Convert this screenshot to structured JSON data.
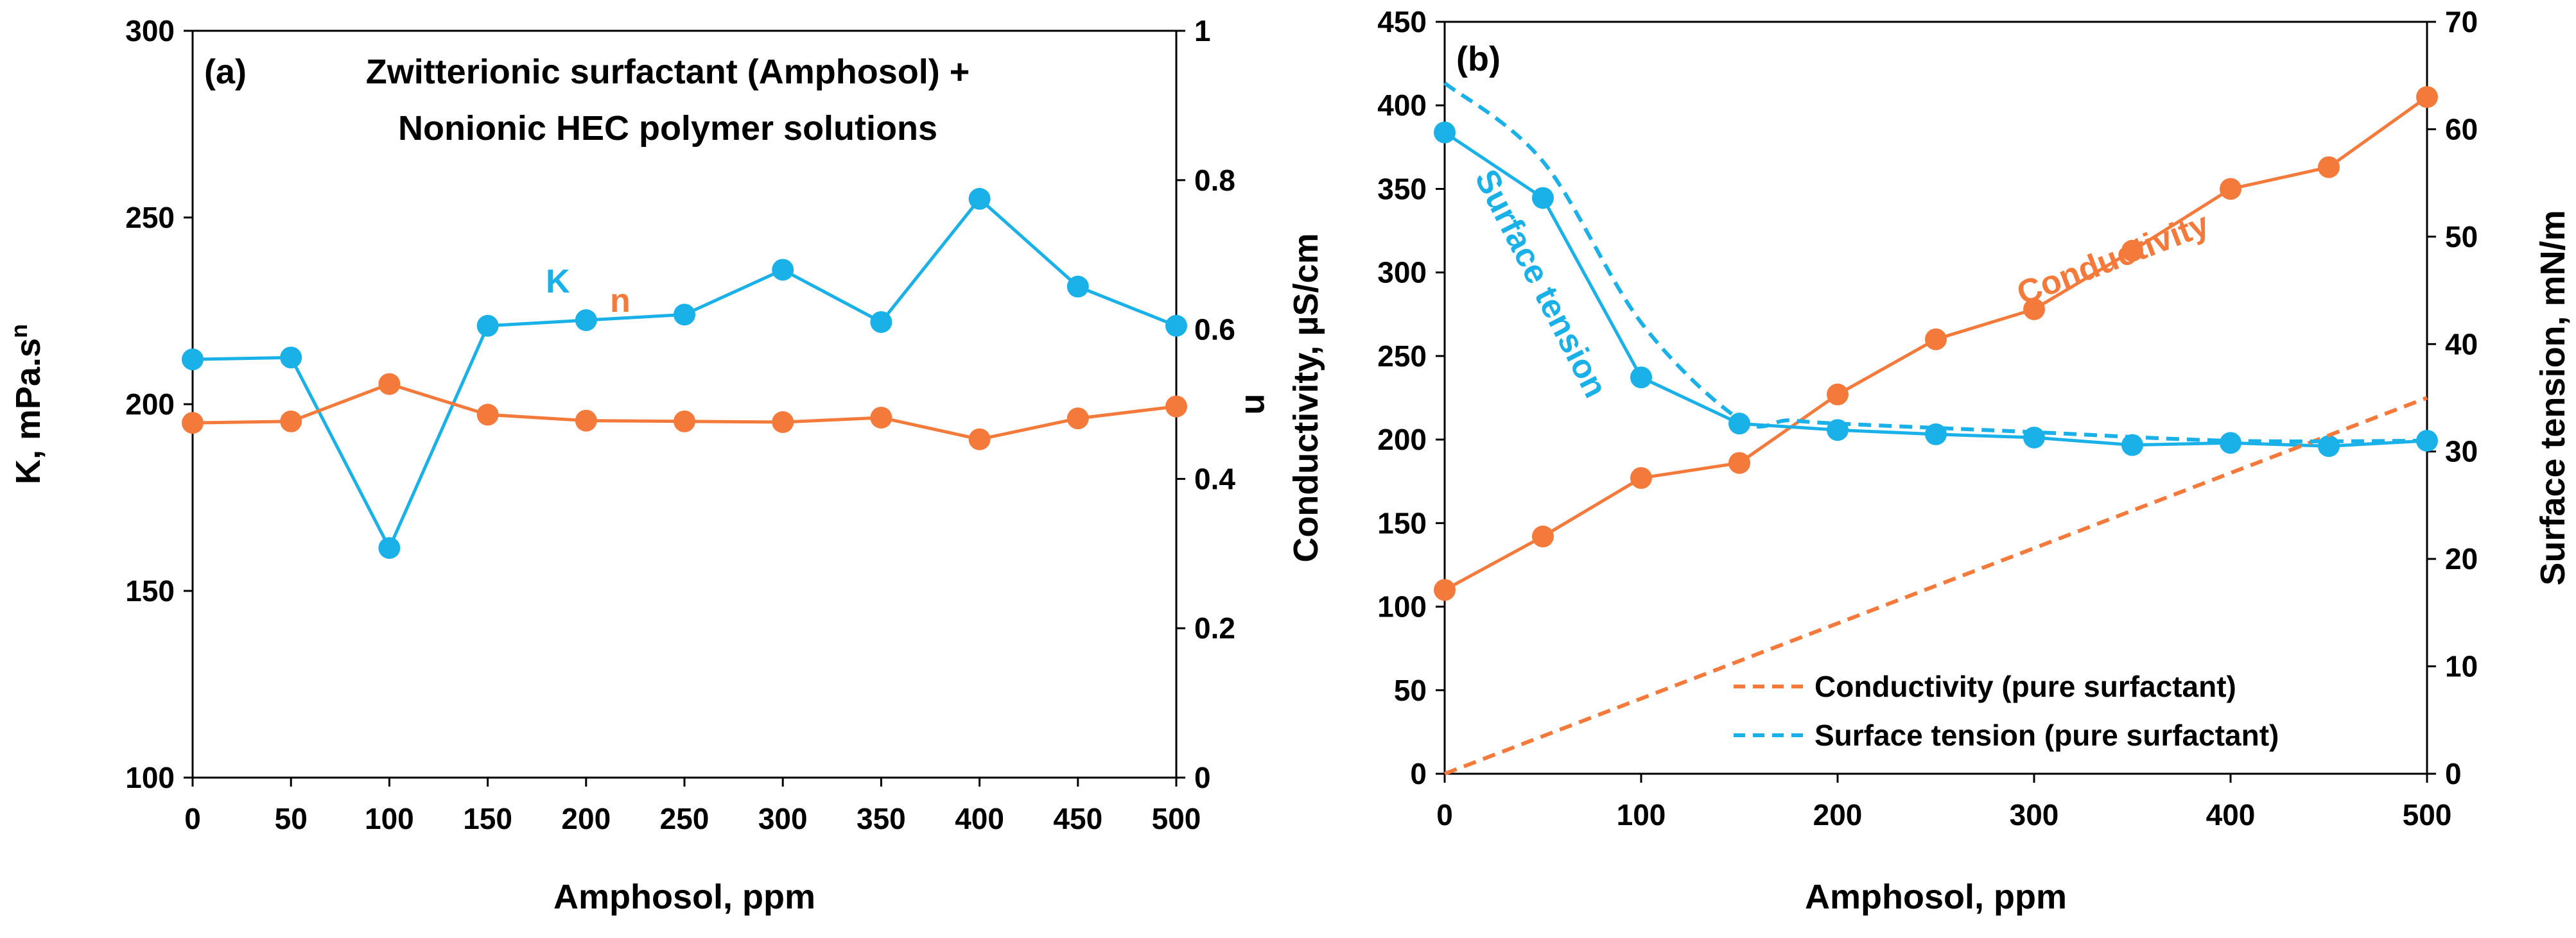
{
  "chart_data": [
    {
      "type": "line",
      "panel_label": "(a)",
      "title_lines": [
        "Zwitterionic surfactant (Amphosol) +",
        "Nonionic HEC polymer solutions"
      ],
      "xlabel": "Amphosol, ppm",
      "ylabel": "K, mPa.s",
      "ylabel_sup": "n",
      "y2label": "n",
      "xlim": [
        0,
        500
      ],
      "ylim": [
        100,
        300
      ],
      "y2lim": [
        0,
        1
      ],
      "x_ticks": [
        "0",
        "50",
        "100",
        "150",
        "200",
        "250",
        "300",
        "350",
        "400",
        "450",
        "500"
      ],
      "y_ticks": [
        "100",
        "150",
        "200",
        "250",
        "300"
      ],
      "y2_ticks": [
        "0",
        "0.2",
        "0.4",
        "0.6",
        "0.8",
        "1"
      ],
      "x": [
        0,
        50,
        100,
        150,
        200,
        250,
        300,
        350,
        400,
        450,
        500
      ],
      "series": [
        {
          "name": "K",
          "axis": "left",
          "color": "#1ab0e8",
          "values": [
            212,
            212.5,
            161.5,
            221,
            222.5,
            224,
            236,
            222,
            255,
            231.5,
            221
          ]
        },
        {
          "name": "n",
          "axis": "right",
          "color": "#f47a3c",
          "values": [
            0.475,
            0.477,
            0.527,
            0.486,
            0.478,
            0.477,
            0.476,
            0.482,
            0.453,
            0.481,
            0.497
          ]
        }
      ],
      "annotations": [
        "K",
        "n"
      ]
    },
    {
      "type": "line",
      "panel_label": "(b)",
      "xlabel": "Amphosol, ppm",
      "ylabel": "Conductivity, µS/cm",
      "y2label": "Surface tension, mN/m",
      "xlim": [
        0,
        500
      ],
      "ylim": [
        0,
        450
      ],
      "y2lim": [
        0,
        70
      ],
      "x_ticks": [
        "0",
        "100",
        "200",
        "300",
        "400",
        "500"
      ],
      "y_ticks": [
        "0",
        "50",
        "100",
        "150",
        "200",
        "250",
        "300",
        "350",
        "400",
        "450"
      ],
      "y2_ticks": [
        "0",
        "10",
        "20",
        "30",
        "40",
        "50",
        "60",
        "70"
      ],
      "series": [
        {
          "name": "Conductivity",
          "axis": "left",
          "color": "#f47a3c",
          "style": "solid-markers",
          "x": [
            0,
            50,
            100,
            150,
            200,
            250,
            300,
            350,
            400,
            450,
            500
          ],
          "values": [
            110,
            142,
            177,
            186,
            227,
            260,
            278,
            313,
            350,
            363,
            405
          ]
        },
        {
          "name": "Surface tension",
          "axis": "right",
          "color": "#1ab0e8",
          "style": "solid-markers",
          "x": [
            0,
            50,
            100,
            150,
            200,
            250,
            300,
            350,
            400,
            450,
            500
          ],
          "values": [
            59.7,
            53.6,
            36.9,
            32.6,
            32.0,
            31.6,
            31.3,
            30.6,
            30.8,
            30.5,
            31.0
          ]
        },
        {
          "name": "Conductivity (pure surfactant)",
          "axis": "left",
          "color": "#f47a3c",
          "style": "dashed",
          "x": [
            0,
            500
          ],
          "values": [
            0,
            225
          ]
        },
        {
          "name": "Surface tension (pure surfactant)",
          "axis": "right",
          "color": "#1ab0e8",
          "style": "dashed",
          "x": [
            0,
            50,
            100,
            150,
            175,
            200,
            300,
            400,
            500
          ],
          "values": [
            64.3,
            57,
            42,
            33,
            32.9,
            32.6,
            31.8,
            31.0,
            31.0
          ]
        }
      ],
      "annotations": [
        "Conductivity",
        "Surface tension"
      ],
      "legend": [
        "Conductivity (pure surfactant)",
        "Surface tension (pure surfactant)"
      ]
    }
  ]
}
